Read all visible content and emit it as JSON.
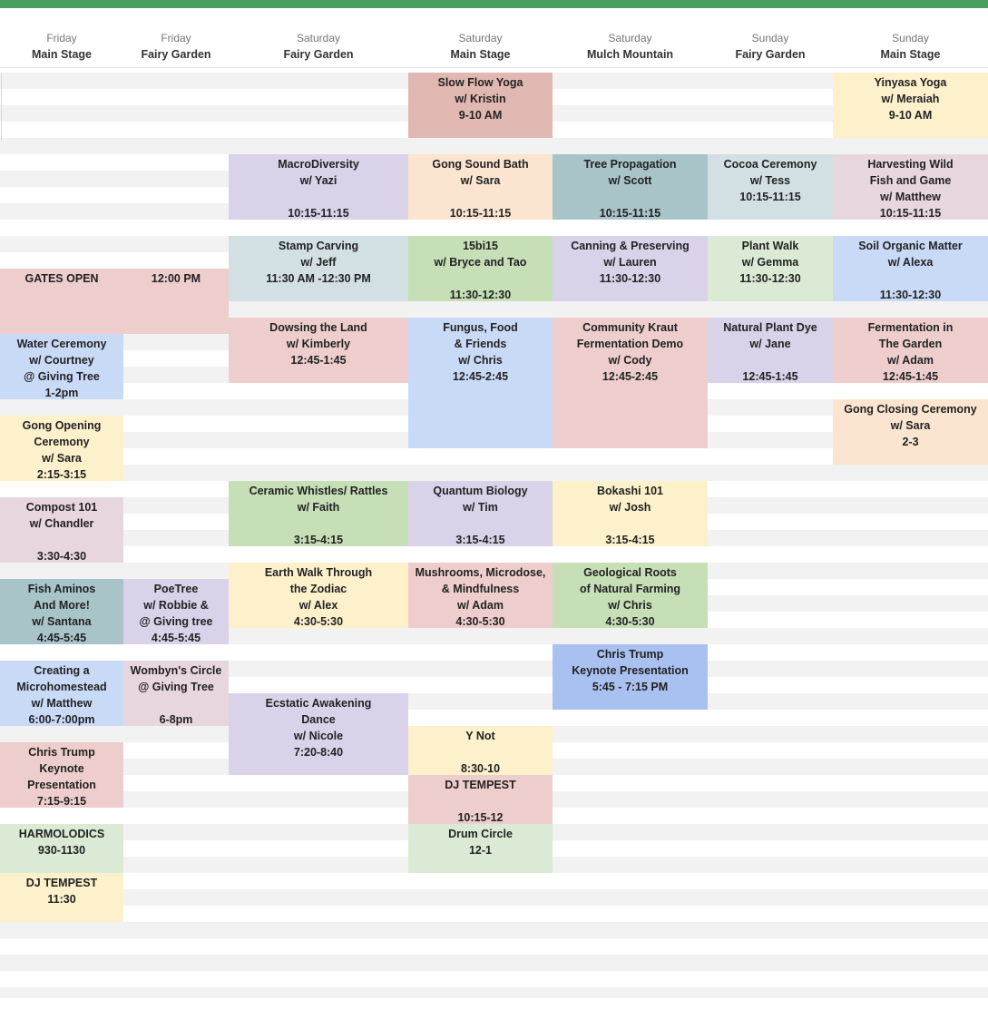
{
  "columns": [
    {
      "day": "Friday",
      "stage": "Main Stage"
    },
    {
      "day": "Friday",
      "stage": "Fairy Garden"
    },
    {
      "day": "Saturday",
      "stage": "Fairy Garden"
    },
    {
      "day": "Saturday",
      "stage": "Main Stage"
    },
    {
      "day": "Saturday",
      "stage": "Mulch Mountain"
    },
    {
      "day": "Sunday",
      "stage": "Fairy Garden"
    },
    {
      "day": "Sunday",
      "stage": "Main Stage"
    }
  ],
  "colors": {
    "header_bar": "#4a9e5f",
    "pink": "#eecdcd",
    "salmon": "#e0b8b1",
    "yellow": "#fdf1cc",
    "peach": "#fbe5d0",
    "lavender": "#d9d2e9",
    "green": "#c6dfb7",
    "light_green": "#dbead4",
    "blue": "#c9daf7",
    "periwinkle": "#a9c1f0",
    "teal": "#a9c4c8",
    "grey_blue": "#d2e0e3",
    "mauve": "#e7d6de"
  },
  "events": [
    {
      "col": 0,
      "color": "pink",
      "lines": [
        "GATES OPEN"
      ]
    },
    {
      "col": 0,
      "color": "blue",
      "lines": [
        "Water Ceremony",
        "w/ Courtney",
        "@ Giving Tree",
        "1-2pm"
      ]
    },
    {
      "col": 0,
      "color": "yellow",
      "lines": [
        "Gong Opening",
        "Ceremony",
        "w/ Sara",
        "2:15-3:15"
      ]
    },
    {
      "col": 0,
      "color": "mauve",
      "lines": [
        "Compost 101",
        "w/ Chandler",
        "",
        "3:30-4:30"
      ]
    },
    {
      "col": 0,
      "color": "teal",
      "lines": [
        "Fish Aminos",
        "And More!",
        "w/ Santana",
        "4:45-5:45"
      ]
    },
    {
      "col": 0,
      "color": "blue",
      "lines": [
        "Creating a",
        "Microhomestead",
        "w/ Matthew",
        "6:00-7:00pm"
      ]
    },
    {
      "col": 0,
      "color": "pink",
      "lines": [
        "Chris Trump",
        "Keynote",
        "Presentation",
        "7:15-9:15"
      ]
    },
    {
      "col": 0,
      "color": "light_green",
      "lines": [
        "HARMOLODICS",
        "930-1130"
      ]
    },
    {
      "col": 0,
      "color": "yellow",
      "lines": [
        "DJ TEMPEST",
        "11:30"
      ]
    },
    {
      "col": 1,
      "color": "pink",
      "lines": [
        "12:00 PM"
      ]
    },
    {
      "col": 1,
      "color": "lavender",
      "lines": [
        "PoeTree",
        "w/ Robbie &",
        "@ Giving tree",
        "4:45-5:45"
      ]
    },
    {
      "col": 1,
      "color": "mauve",
      "lines": [
        "Wombyn's Circle",
        "@ Giving Tree",
        "",
        "6-8pm"
      ]
    },
    {
      "col": 2,
      "color": "lavender",
      "lines": [
        "MacroDiversity",
        "w/ Yazi",
        "",
        "10:15-11:15"
      ]
    },
    {
      "col": 2,
      "color": "grey_blue",
      "lines": [
        "Stamp Carving",
        "w/ Jeff",
        "11:30 AM -12:30 PM"
      ]
    },
    {
      "col": 2,
      "color": "pink",
      "lines": [
        "Dowsing the Land",
        "w/ Kimberly",
        "12:45-1:45"
      ]
    },
    {
      "col": 2,
      "color": "green",
      "lines": [
        "Ceramic Whistles/ Rattles",
        "w/ Faith",
        "",
        "3:15-4:15"
      ]
    },
    {
      "col": 2,
      "color": "yellow",
      "lines": [
        "Earth Walk Through",
        "the Zodiac",
        "w/ Alex",
        "4:30-5:30"
      ]
    },
    {
      "col": 2,
      "color": "lavender",
      "lines": [
        "Ecstatic Awakening",
        "Dance",
        "w/ Nicole",
        "7:20-8:40"
      ]
    },
    {
      "col": 3,
      "color": "salmon",
      "lines": [
        "Slow Flow Yoga",
        "w/ Kristin",
        "9-10 AM"
      ]
    },
    {
      "col": 3,
      "color": "peach",
      "lines": [
        "Gong Sound Bath",
        "w/ Sara",
        "",
        "10:15-11:15"
      ]
    },
    {
      "col": 3,
      "color": "green",
      "lines": [
        "15bi15",
        "w/ Bryce and Tao",
        "",
        "11:30-12:30"
      ]
    },
    {
      "col": 3,
      "color": "blue",
      "lines": [
        "Fungus, Food",
        "& Friends",
        "w/ Chris",
        "12:45-2:45"
      ]
    },
    {
      "col": 3,
      "color": "lavender",
      "lines": [
        "Quantum Biology",
        "w/ Tim",
        "",
        "3:15-4:15"
      ]
    },
    {
      "col": 3,
      "color": "pink",
      "lines": [
        "Mushrooms, Microdose,",
        "& Mindfulness",
        "w/ Adam",
        "4:30-5:30"
      ]
    },
    {
      "col": 3,
      "color": "yellow",
      "lines": [
        "Y Not",
        "",
        "8:30-10"
      ]
    },
    {
      "col": 3,
      "color": "pink",
      "lines": [
        "DJ TEMPEST",
        "",
        "10:15-12"
      ]
    },
    {
      "col": 3,
      "color": "light_green",
      "lines": [
        "Drum Circle",
        "12-1"
      ]
    },
    {
      "col": 4,
      "color": "teal",
      "lines": [
        "Tree Propagation",
        "w/ Scott",
        "",
        "10:15-11:15"
      ]
    },
    {
      "col": 4,
      "color": "lavender",
      "lines": [
        "Canning & Preserving",
        "w/ Lauren",
        "11:30-12:30"
      ]
    },
    {
      "col": 4,
      "color": "pink",
      "lines": [
        "Community Kraut",
        "Fermentation Demo",
        "w/ Cody",
        "12:45-2:45"
      ]
    },
    {
      "col": 4,
      "color": "yellow",
      "lines": [
        "Bokashi 101",
        "w/ Josh",
        "",
        "3:15-4:15"
      ]
    },
    {
      "col": 4,
      "color": "green",
      "lines": [
        "Geological Roots",
        "of Natural Farming",
        "w/ Chris",
        "4:30-5:30"
      ]
    },
    {
      "col": 4,
      "color": "periwinkle",
      "lines": [
        "Chris Trump",
        "Keynote Presentation",
        "5:45 - 7:15 PM"
      ]
    },
    {
      "col": 5,
      "color": "grey_blue",
      "lines": [
        "Cocoa Ceremony",
        "w/ Tess",
        "10:15-11:15"
      ]
    },
    {
      "col": 5,
      "color": "light_green",
      "lines": [
        "Plant Walk",
        "w/ Gemma",
        "11:30-12:30"
      ]
    },
    {
      "col": 5,
      "color": "lavender",
      "lines": [
        "Natural Plant Dye",
        "w/ Jane",
        "",
        "12:45-1:45"
      ]
    },
    {
      "col": 6,
      "color": "yellow",
      "lines": [
        "Yinyasa Yoga",
        "w/ Meraiah",
        "9-10 AM"
      ]
    },
    {
      "col": 6,
      "color": "mauve",
      "lines": [
        "Harvesting Wild",
        "Fish and Game",
        "w/ Matthew",
        "10:15-11:15"
      ]
    },
    {
      "col": 6,
      "color": "blue",
      "lines": [
        "Soil Organic Matter",
        "w/ Alexa",
        "",
        "11:30-12:30"
      ]
    },
    {
      "col": 6,
      "color": "pink",
      "lines": [
        "Fermentation in",
        "The Garden",
        "w/ Adam",
        "12:45-1:45"
      ]
    },
    {
      "col": 6,
      "color": "peach",
      "lines": [
        "Gong Closing Ceremony",
        "w/ Sara",
        "2-3"
      ]
    }
  ]
}
